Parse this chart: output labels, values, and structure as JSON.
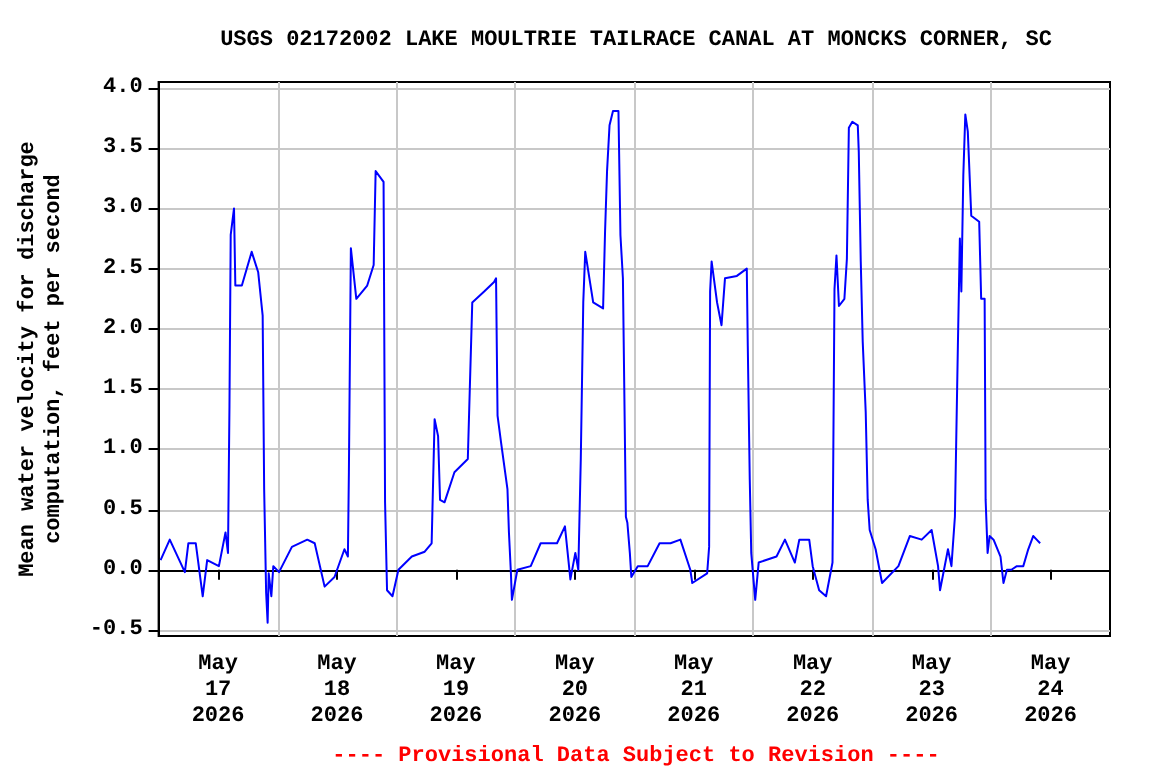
{
  "chart_data": {
    "type": "line",
    "title": "USGS 02172002 LAKE MOULTRIE TAILRACE CANAL AT MONCKS CORNER, SC",
    "ylabel": "Mean water velocity for discharge\ncomputation, feet per second",
    "annotations": [
      "---- Provisional Data Subject to Revision ----"
    ],
    "marker": "none",
    "grid": true,
    "x": [
      "2026-05-17T00:24",
      "2026-05-17T02:15",
      "2026-05-17T05:18",
      "2026-05-17T06:00",
      "2026-05-17T07:30",
      "2026-05-17T08:54",
      "2026-05-17T09:48",
      "2026-05-17T12:10",
      "2026-05-17T13:30",
      "2026-05-17T14:00",
      "2026-05-17T14:18",
      "2026-05-17T14:33",
      "2026-05-17T15:13",
      "2026-05-17T15:29",
      "2026-05-17T16:48",
      "2026-05-17T18:47",
      "2026-05-17T20:06",
      "2026-05-17T21:00",
      "2026-05-17T21:18",
      "2026-05-17T21:42",
      "2026-05-17T22:00",
      "2026-05-17T22:13",
      "2026-05-17T22:45",
      "2026-05-17T23:09",
      "2026-05-18T00:18",
      "2026-05-18T02:54",
      "2026-05-18T06:00",
      "2026-05-18T07:30",
      "2026-05-18T09:30",
      "2026-05-18T11:30",
      "2026-05-18T13:30",
      "2026-05-18T14:12",
      "2026-05-18T14:24",
      "2026-05-18T14:48",
      "2026-05-18T15:54",
      "2026-05-18T18:06",
      "2026-05-18T19:24",
      "2026-05-18T19:48",
      "2026-05-18T21:24",
      "2026-05-18T21:42",
      "2026-05-18T22:06",
      "2026-05-18T23:12",
      "2026-05-19T00:24",
      "2026-05-19T03:06",
      "2026-05-19T05:42",
      "2026-05-19T07:06",
      "2026-05-19T07:42",
      "2026-05-19T08:24",
      "2026-05-19T08:48",
      "2026-05-19T09:42",
      "2026-05-19T11:42",
      "2026-05-19T14:24",
      "2026-05-19T14:48",
      "2026-05-19T15:18",
      "2026-05-19T17:42",
      "2026-05-19T19:42",
      "2026-05-19T20:06",
      "2026-05-19T20:24",
      "2026-05-19T21:06",
      "2026-05-19T22:24",
      "2026-05-19T22:42",
      "2026-05-19T23:06",
      "2026-05-19T23:18",
      "2026-05-20T00:24",
      "2026-05-20T03:06",
      "2026-05-20T05:06",
      "2026-05-20T08:24",
      "2026-05-20T10:00",
      "2026-05-20T11:06",
      "2026-05-20T12:06",
      "2026-05-20T12:42",
      "2026-05-20T13:12",
      "2026-05-20T13:42",
      "2026-05-20T14:06",
      "2026-05-20T15:42",
      "2026-05-20T17:42",
      "2026-05-20T18:06",
      "2026-05-20T18:30",
      "2026-05-20T19:00",
      "2026-05-20T19:42",
      "2026-05-20T20:48",
      "2026-05-20T21:12",
      "2026-05-20T21:42",
      "2026-05-20T22:18",
      "2026-05-20T22:36",
      "2026-05-20T23:06",
      "2026-05-20T23:24",
      "2026-05-21T00:42",
      "2026-05-21T02:42",
      "2026-05-21T05:06",
      "2026-05-21T07:18",
      "2026-05-21T09:18",
      "2026-05-21T11:18",
      "2026-05-21T11:42",
      "2026-05-21T14:42",
      "2026-05-21T15:06",
      "2026-05-21T15:18",
      "2026-05-21T15:36",
      "2026-05-21T16:42",
      "2026-05-21T17:36",
      "2026-05-21T18:18",
      "2026-05-21T20:42",
      "2026-05-21T22:42",
      "2026-05-21T22:54",
      "2026-05-21T23:18",
      "2026-05-21T23:36",
      "2026-05-22T00:24",
      "2026-05-22T01:06",
      "2026-05-22T04:42",
      "2026-05-22T06:24",
      "2026-05-22T08:24",
      "2026-05-22T09:18",
      "2026-05-22T11:18",
      "2026-05-22T12:00",
      "2026-05-22T13:18",
      "2026-05-22T14:42",
      "2026-05-22T16:00",
      "2026-05-22T16:24",
      "2026-05-22T16:48",
      "2026-05-22T17:18",
      "2026-05-22T18:24",
      "2026-05-22T18:54",
      "2026-05-22T19:18",
      "2026-05-22T20:00",
      "2026-05-22T21:06",
      "2026-05-22T21:18",
      "2026-05-22T21:42",
      "2026-05-22T22:06",
      "2026-05-22T22:42",
      "2026-05-22T23:06",
      "2026-05-22T23:30",
      "2026-05-23T00:42",
      "2026-05-23T02:00",
      "2026-05-23T05:18",
      "2026-05-23T07:36",
      "2026-05-23T10:00",
      "2026-05-23T12:00",
      "2026-05-23T13:18",
      "2026-05-23T13:42",
      "2026-05-23T15:18",
      "2026-05-23T16:00",
      "2026-05-23T16:42",
      "2026-05-23T17:18",
      "2026-05-23T17:42",
      "2026-05-23T18:00",
      "2026-05-23T18:24",
      "2026-05-23T18:48",
      "2026-05-23T19:18",
      "2026-05-23T20:00",
      "2026-05-23T21:36",
      "2026-05-23T22:00",
      "2026-05-23T22:42",
      "2026-05-23T22:54",
      "2026-05-23T23:18",
      "2026-05-23T23:42",
      "2026-05-24T00:30",
      "2026-05-24T01:54",
      "2026-05-24T02:30",
      "2026-05-24T03:12",
      "2026-05-24T04:06",
      "2026-05-24T05:12",
      "2026-05-24T06:30",
      "2026-05-24T07:30",
      "2026-05-24T08:30",
      "2026-05-24T09:12",
      "2026-05-24T09:54"
    ],
    "series": [
      {
        "color": "#0000ff",
        "values": [
          0.08,
          0.25,
          -0.02,
          0.22,
          0.22,
          -0.22,
          0.08,
          0.03,
          0.31,
          0.14,
          1.36,
          2.78,
          3.0,
          2.36,
          2.36,
          2.64,
          2.47,
          2.11,
          0.67,
          -0.19,
          -0.44,
          -0.03,
          -0.22,
          0.03,
          -0.02,
          0.19,
          0.25,
          0.22,
          -0.14,
          -0.06,
          0.17,
          0.11,
          0.81,
          2.67,
          2.25,
          2.36,
          2.53,
          3.31,
          3.22,
          0.56,
          -0.17,
          -0.22,
          0.0,
          0.11,
          0.15,
          0.22,
          1.25,
          1.11,
          0.58,
          0.56,
          0.81,
          0.92,
          1.5,
          2.22,
          2.31,
          2.39,
          2.42,
          1.28,
          1.06,
          0.67,
          0.31,
          -0.03,
          -0.25,
          0.0,
          0.03,
          0.22,
          0.22,
          0.36,
          -0.08,
          0.14,
          0.0,
          0.92,
          2.22,
          2.64,
          2.22,
          2.17,
          2.81,
          3.31,
          3.69,
          3.81,
          3.81,
          2.78,
          2.42,
          0.44,
          0.39,
          0.14,
          -0.06,
          0.03,
          0.03,
          0.22,
          0.22,
          0.25,
          0.0,
          -0.11,
          -0.03,
          0.19,
          2.31,
          2.56,
          2.22,
          2.03,
          2.42,
          2.44,
          2.5,
          1.86,
          0.75,
          0.14,
          -0.25,
          0.06,
          0.11,
          0.25,
          0.06,
          0.25,
          0.25,
          0.03,
          -0.17,
          -0.22,
          0.06,
          2.33,
          2.61,
          2.19,
          2.25,
          2.58,
          3.67,
          3.72,
          3.69,
          3.47,
          2.56,
          1.89,
          1.31,
          0.58,
          0.33,
          0.17,
          -0.11,
          0.03,
          0.28,
          0.25,
          0.33,
          0.03,
          -0.17,
          0.17,
          0.03,
          0.44,
          1.86,
          2.75,
          2.31,
          3.28,
          3.78,
          3.64,
          2.94,
          2.89,
          2.25,
          2.25,
          0.58,
          0.14,
          0.28,
          0.25,
          0.11,
          -0.11,
          0.0,
          0.0,
          0.03,
          0.03,
          0.17,
          0.28,
          0.25,
          0.22
        ]
      }
    ],
    "xlim": [
      "2026-05-17T00:00",
      "2026-05-25T00:00"
    ],
    "xticks": [
      {
        "value": "2026-05-17T12:00",
        "label": "May\n17\n2026"
      },
      {
        "value": "2026-05-18T12:00",
        "label": "May\n18\n2026"
      },
      {
        "value": "2026-05-19T12:00",
        "label": "May\n19\n2026"
      },
      {
        "value": "2026-05-20T12:00",
        "label": "May\n20\n2026"
      },
      {
        "value": "2026-05-21T12:00",
        "label": "May\n21\n2026"
      },
      {
        "value": "2026-05-22T12:00",
        "label": "May\n22\n2026"
      },
      {
        "value": "2026-05-23T12:00",
        "label": "May\n23\n2026"
      },
      {
        "value": "2026-05-24T12:00",
        "label": "May\n24\n2026"
      },
      {
        "value": "2026-05-18T00:00",
        "label": null
      },
      {
        "value": "2026-05-19T00:00",
        "label": null
      },
      {
        "value": "2026-05-20T00:00",
        "label": null
      },
      {
        "value": "2026-05-21T00:00",
        "label": null
      },
      {
        "value": "2026-05-22T00:00",
        "label": null
      },
      {
        "value": "2026-05-23T00:00",
        "label": null
      },
      {
        "value": "2026-05-24T00:00",
        "label": null
      }
    ],
    "ylim": [
      -0.55,
      4.05
    ],
    "yticks": [
      {
        "value": -0.5,
        "label": "-0.5"
      },
      {
        "value": 0,
        "label": "0.0"
      },
      {
        "value": 0.5,
        "label": "0.5"
      },
      {
        "value": 1,
        "label": "1.0"
      },
      {
        "value": 1.5,
        "label": "1.5"
      },
      {
        "value": 2,
        "label": "2.0"
      },
      {
        "value": 2.5,
        "label": "2.5"
      },
      {
        "value": 3,
        "label": "3.0"
      },
      {
        "value": 3.5,
        "label": "3.5"
      },
      {
        "value": 4,
        "label": "4.0"
      }
    ]
  }
}
